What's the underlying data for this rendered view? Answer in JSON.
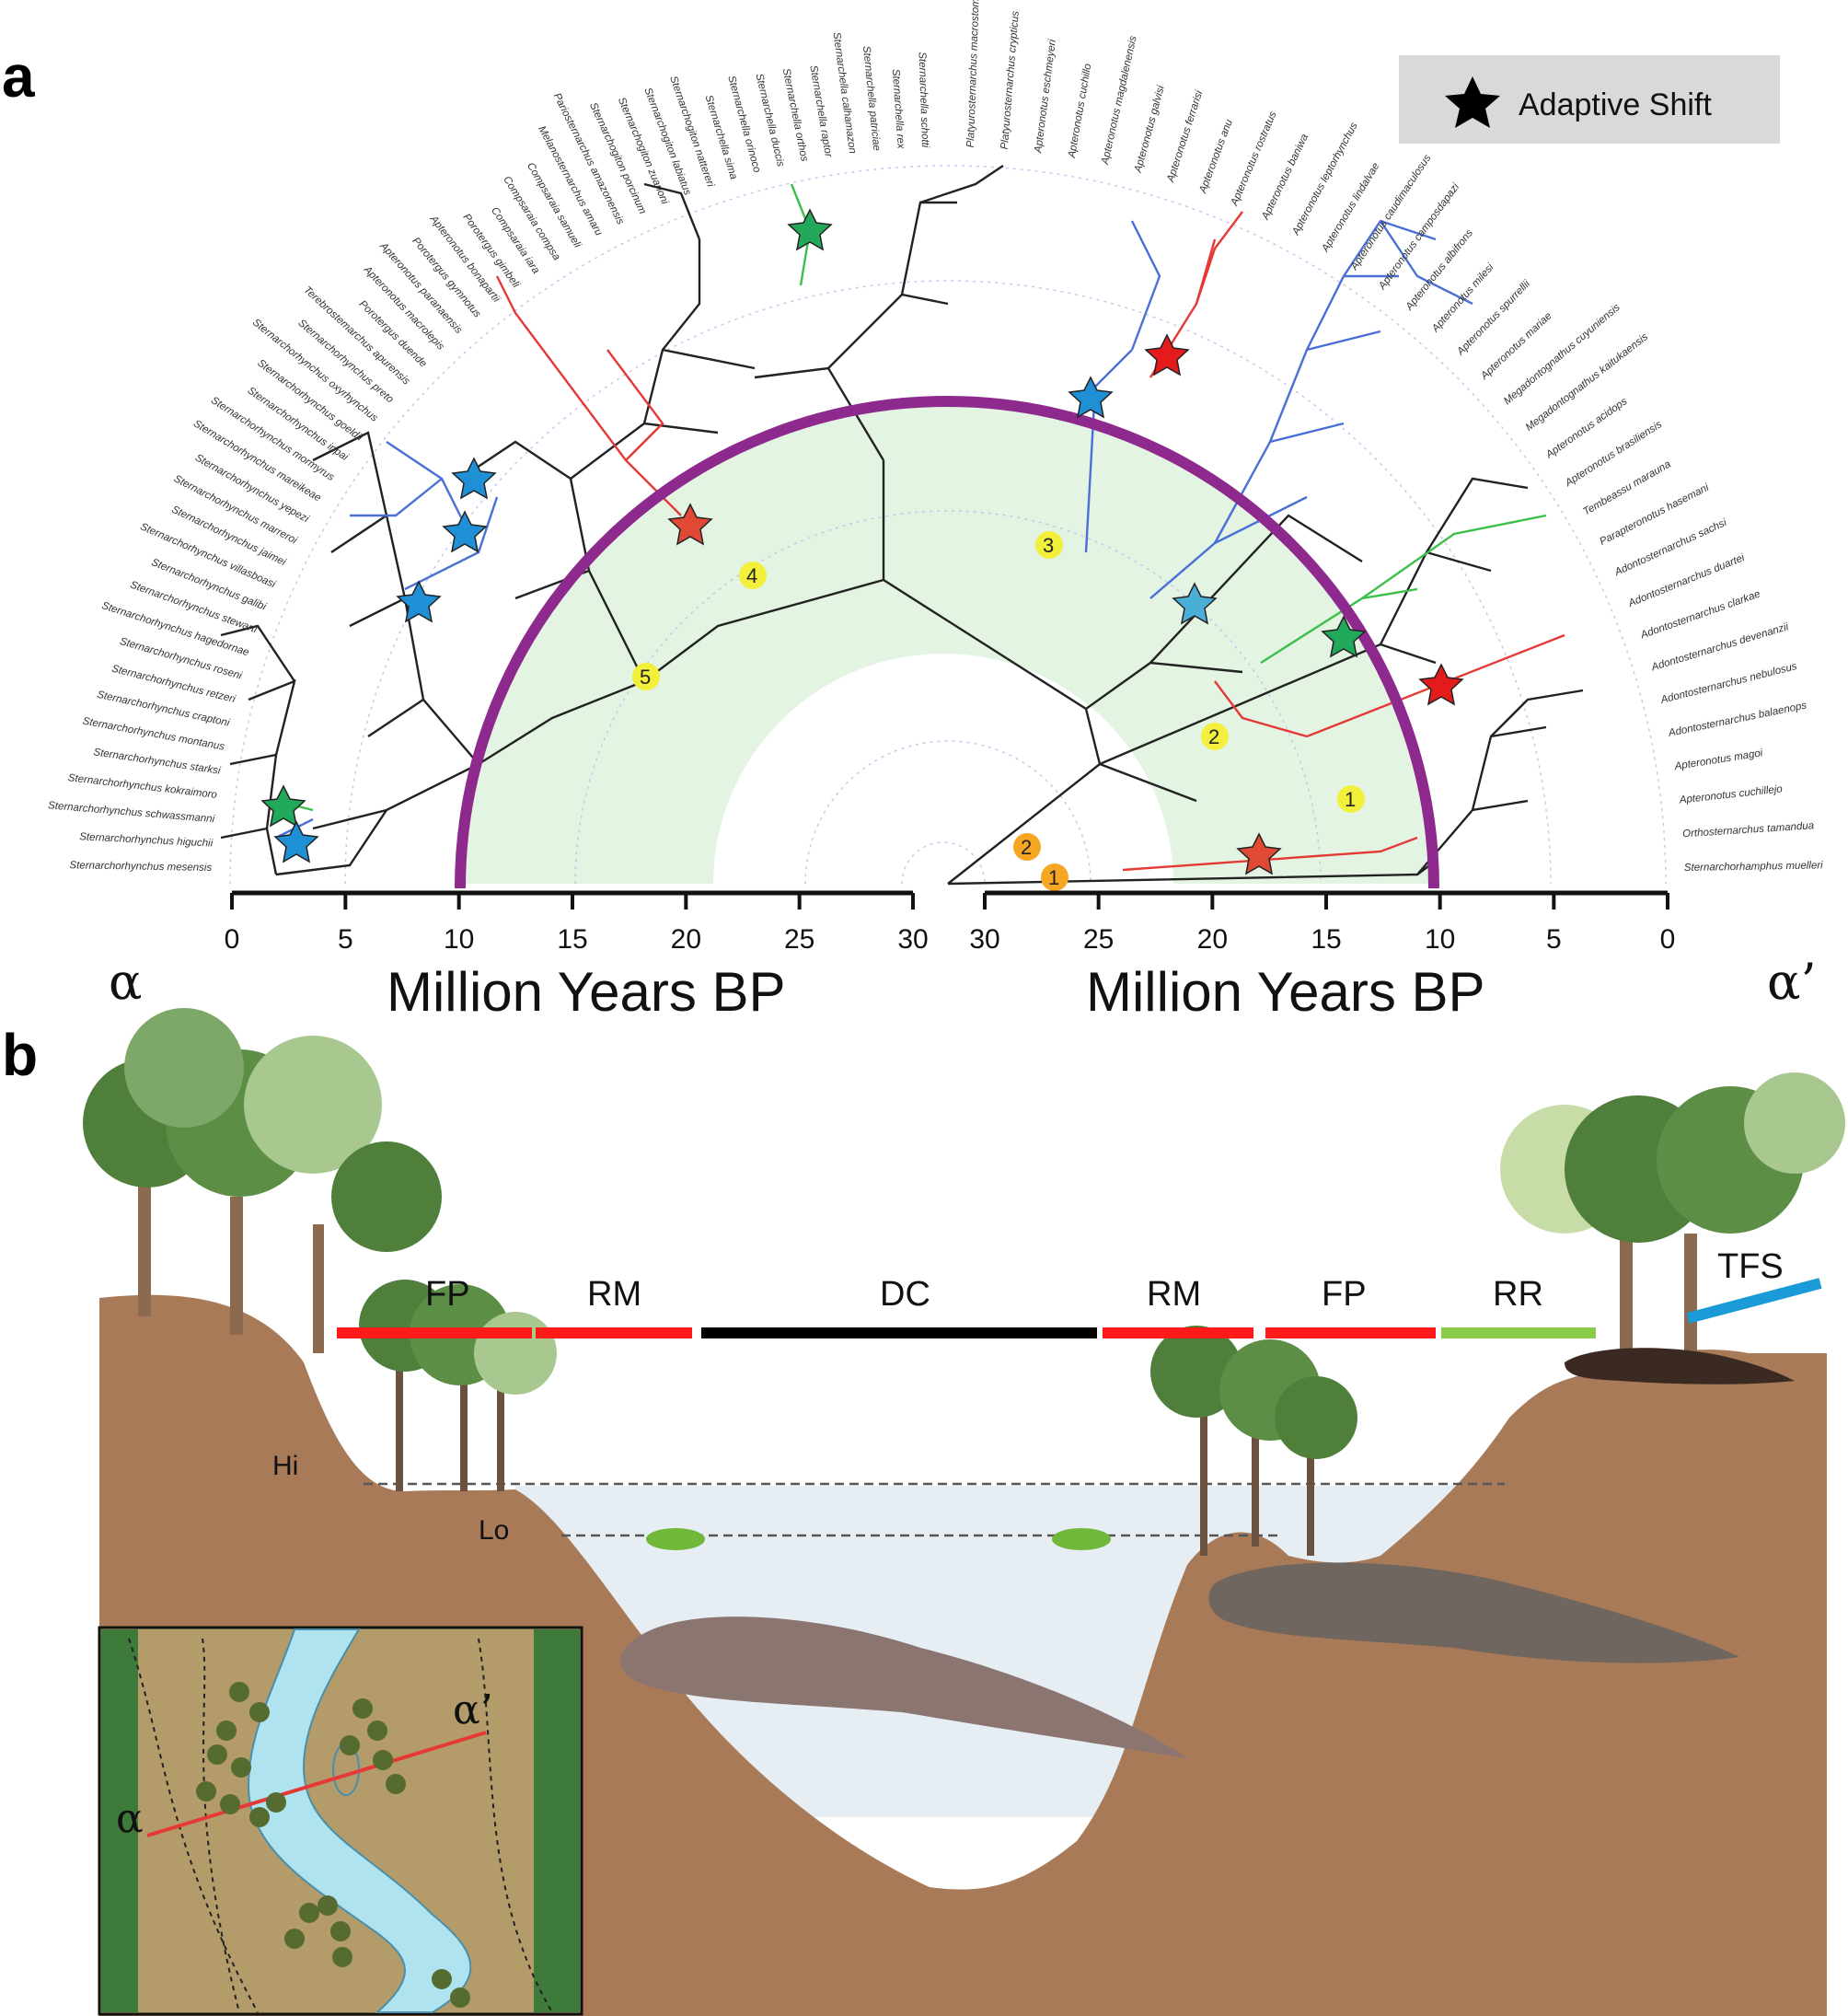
{
  "panel_a": {
    "letter": "a",
    "legend": {
      "label": "Adaptive Shift",
      "icon": "star-icon"
    },
    "left_axis": {
      "label": "Million Years BP",
      "ticks": [
        "0",
        "5",
        "10",
        "15",
        "20",
        "25",
        "30"
      ]
    },
    "right_axis": {
      "label": "Million Years BP",
      "ticks": [
        "30",
        "25",
        "20",
        "15",
        "10",
        "5",
        "0"
      ]
    },
    "taxa_left": [
      "Sternarchorhynchus mesensis",
      "Sternarchorhynchus higuchii",
      "Sternarchorhynchus schwassmanni",
      "Sternarchorhynchus kokraimoro",
      "Sternarchorhynchus starksi",
      "Sternarchorhynchus montanus",
      "Sternarchorhynchus craptoni",
      "Sternarchorhynchus retzeri",
      "Sternarchorhynchus roseni",
      "Sternarchorhynchus hagedornae",
      "Sternarchorhynchus stewarti",
      "Sternarchorhynchus galibi",
      "Sternarchorhynchus villasboasi",
      "Sternarchorhynchus jaimei",
      "Sternarchorhynchus marreroi",
      "Sternarchorhynchus yepezi",
      "Sternarchorhynchus mareikeae",
      "Sternarchorhynchus mormyrus",
      "Sternarchorhynchus inpai",
      "Sternarchorhynchus goeldii",
      "Sternarchorhynchus oxyrhynchus",
      "Sternarchorhynchus preto",
      "Terebrostemarchus apurensis",
      "Porotergus duende",
      "Apteronotus macrolepis",
      "Apteronotus paranaensis",
      "Porotergus gymnotus",
      "Apteronotus bonapartii",
      "Porotergus gimbeli",
      "Compsaraia iara",
      "Compsaraia compsa",
      "Compsaraia samueli",
      "Melanosternarchus amaru",
      "Pariosternarchus amazonensis",
      "Sternarchogiton porcinum",
      "Sternarchogiton zuanoni",
      "Sternarchogiton labiatus",
      "Sternarchogiton nattereri",
      "Sternarchella sima",
      "Sternarchella orinoco",
      "Sternarchella duccis",
      "Sternarchella orthos",
      "Sternarchella raptor",
      "Sternarchella calhamazon",
      "Sternarchella patriciae",
      "Sternarchella rex",
      "Sternarchella schotti"
    ],
    "taxa_right": [
      "Platyurosternarchus macrostoma",
      "Platyurosternarchus crypticus",
      "Apteronotus eschmeyeri",
      "Apteronotus cuchillo",
      "Apteronotus magdalenensis",
      "Apteronotus galvisi",
      "Apteronotus ferrarisi",
      "Apteronotus anu",
      "Apteronotus rostratus",
      "Apteronotus baniwa",
      "Apteronotus leptorhynchus",
      "Apteronotus lindalvae",
      "Apteronotus caudimaculosus",
      "Apteronotus camposdapazi",
      "Apteronotus albifrons",
      "Apteronotus milesi",
      "Apteronotus spurrellii",
      "Apteronotus mariae",
      "Megadontognathus cuyuniensis",
      "Megadontognathus kaitukaensis",
      "Apteronotus acidops",
      "Apteronotus brasiliensis",
      "Tembeassu marauna",
      "Parapteronotus hasemani",
      "Adontosternarchus sachsi",
      "Adontosternarchus duartei",
      "Adontosternarchus clarkae",
      "Adontosternarchus devenanzii",
      "Adontosternarchus nebulosus",
      "Adontosternarchus balaenops",
      "Apteronotus magoi",
      "Apteronotus cuchillejo",
      "Orthosternarchus tamandua",
      "Sternarchorhamphus muelleri"
    ],
    "nodes": [
      "1",
      "2",
      "3",
      "4",
      "5",
      "2",
      "1"
    ],
    "colors": {
      "arc": "#8e2a8e",
      "shade": "#e3f4e3",
      "red": "#e53935",
      "blue": "#4a6fd6",
      "green": "#3cbf4a",
      "black": "#222222",
      "yellow": "#f2f03a",
      "orange": "#f5a623"
    }
  },
  "panel_b": {
    "letter": "b",
    "alpha_left": "α",
    "alpha_right": "α’",
    "zones": [
      {
        "label": "FP",
        "color": "#ff1a1a"
      },
      {
        "label": "RM",
        "color": "#ff1a1a"
      },
      {
        "label": "DC",
        "color": "#000000"
      },
      {
        "label": "RM",
        "color": "#ff1a1a"
      },
      {
        "label": "FP",
        "color": "#ff1a1a"
      },
      {
        "label": "RR",
        "color": "#8ccc4a"
      },
      {
        "label": "TFS",
        "color": "#1a9ad6"
      }
    ],
    "hi_label": "Hi",
    "lo_label": "Lo",
    "inset": {
      "alpha_left": "α",
      "alpha_right": "α’"
    },
    "colors": {
      "soil": "#a87a58",
      "water": "#e6eef4",
      "tree": "#4f7f3a",
      "inset_bg": "#b39b6a",
      "river": "#aee3ef"
    }
  }
}
